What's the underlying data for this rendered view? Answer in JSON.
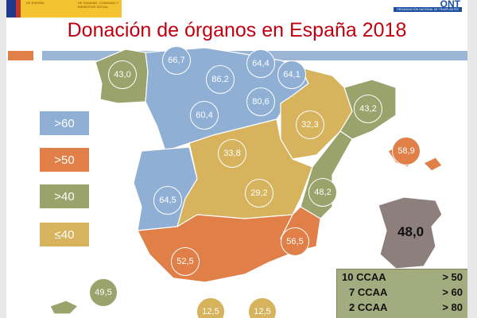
{
  "header": {
    "gov_logo_text": [
      "DE ESPAÑA",
      "DE SANIDAD, CONSUMO Y BIENESTAR SOCIAL"
    ],
    "ont_name": "ONT",
    "ont_subtitle": "ORGANIZACIÓN NACIONAL DE TRASPLANTES"
  },
  "title": "Donación de órganos en España 2018",
  "legend": [
    {
      "label": ">60",
      "color": "#8fb0d4"
    },
    {
      "label": ">50",
      "color": "#e07f48"
    },
    {
      "label": ">40",
      "color": "#9aa36b"
    },
    {
      "label": "≤40",
      "color": "#d6b35c"
    }
  ],
  "regions": [
    {
      "name": "Galicia",
      "value": "43,0"
    },
    {
      "name": "Asturias",
      "value": "66,7"
    },
    {
      "name": "Cantabria",
      "value": "86,2"
    },
    {
      "name": "País Vasco",
      "value": "64,4"
    },
    {
      "name": "Navarra",
      "value": "64,1"
    },
    {
      "name": "La Rioja",
      "value": "80,6"
    },
    {
      "name": "Castilla y León",
      "value": "60,4"
    },
    {
      "name": "Aragón",
      "value": "32,3"
    },
    {
      "name": "Cataluña",
      "value": "43,2"
    },
    {
      "name": "Baleares",
      "value": "58,9"
    },
    {
      "name": "Madrid",
      "value": "33,8"
    },
    {
      "name": "Castilla-La Mancha",
      "value": "29,2"
    },
    {
      "name": "C. Valenciana",
      "value": "48,2"
    },
    {
      "name": "Extremadura",
      "value": "64,5"
    },
    {
      "name": "Murcia",
      "value": "56,5"
    },
    {
      "name": "Andalucía",
      "value": "52,5"
    },
    {
      "name": "Canarias",
      "value": "49,5"
    },
    {
      "name": "Ceuta",
      "value": "12,5"
    },
    {
      "name": "Melilla",
      "value": "12,5"
    }
  ],
  "spain_total": "48,0",
  "summary": [
    {
      "count": "10 CCAA",
      "threshold": "> 50"
    },
    {
      "count": "7 CCAA",
      "threshold": "> 60"
    },
    {
      "count": "2 CCAA",
      "threshold": "> 80"
    }
  ]
}
